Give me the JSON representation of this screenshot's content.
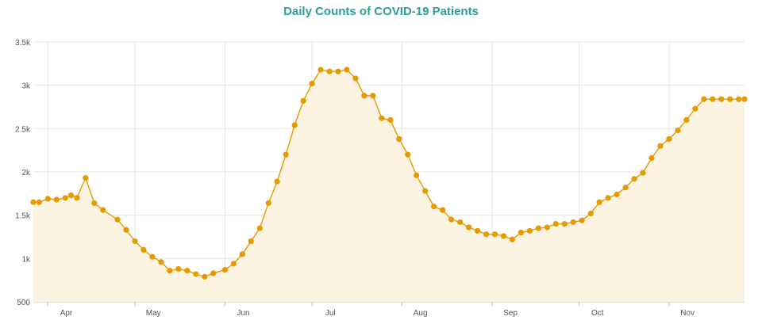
{
  "chart_data": {
    "type": "area",
    "title": "Daily Counts of COVID-19 Patients",
    "xlabel": "",
    "ylabel": "",
    "x_start": "2020-03-27",
    "x_end": "2020-11-27",
    "x_ticks": [
      "Apr",
      "May",
      "Jun",
      "Jul",
      "Aug",
      "Sep",
      "Oct",
      "Nov"
    ],
    "ylim": [
      500,
      3500
    ],
    "y_ticks": [
      {
        "value": 500,
        "label": "500"
      },
      {
        "value": 1000,
        "label": "1k"
      },
      {
        "value": 1500,
        "label": "1.5k"
      },
      {
        "value": 2000,
        "label": "2k"
      },
      {
        "value": 2500,
        "label": "2.5k"
      },
      {
        "value": 3000,
        "label": "3k"
      },
      {
        "value": 3500,
        "label": "3.5k"
      }
    ],
    "grid": true,
    "colors": {
      "line": "#e69a00",
      "fill": "#fdf3e3",
      "title": "#2e9e96"
    },
    "series": [
      {
        "x": [
          "2020-03-27",
          "2020-03-29",
          "2020-04-01",
          "2020-04-04",
          "2020-04-07",
          "2020-04-09",
          "2020-04-11",
          "2020-04-14",
          "2020-04-17",
          "2020-04-20",
          "2020-04-25",
          "2020-04-28",
          "2020-05-01",
          "2020-05-04",
          "2020-05-07",
          "2020-05-10",
          "2020-05-13",
          "2020-05-16",
          "2020-05-19",
          "2020-05-22",
          "2020-05-25",
          "2020-05-28",
          "2020-06-01",
          "2020-06-04",
          "2020-06-07",
          "2020-06-10",
          "2020-06-13",
          "2020-06-16",
          "2020-06-19",
          "2020-06-22",
          "2020-06-25",
          "2020-06-28",
          "2020-07-01",
          "2020-07-04",
          "2020-07-07",
          "2020-07-10",
          "2020-07-13",
          "2020-07-16",
          "2020-07-19",
          "2020-07-22",
          "2020-07-25",
          "2020-07-28",
          "2020-07-31",
          "2020-08-03",
          "2020-08-06",
          "2020-08-09",
          "2020-08-12",
          "2020-08-15",
          "2020-08-18",
          "2020-08-21",
          "2020-08-24",
          "2020-08-27",
          "2020-08-30",
          "2020-09-02",
          "2020-09-05",
          "2020-09-08",
          "2020-09-11",
          "2020-09-14",
          "2020-09-17",
          "2020-09-20",
          "2020-09-23",
          "2020-09-26",
          "2020-09-29",
          "2020-10-02",
          "2020-10-05",
          "2020-10-08",
          "2020-10-11",
          "2020-10-14",
          "2020-10-17",
          "2020-10-20",
          "2020-10-23",
          "2020-10-26",
          "2020-10-29",
          "2020-11-01",
          "2020-11-04",
          "2020-11-07",
          "2020-11-10",
          "2020-11-13",
          "2020-11-16",
          "2020-11-19",
          "2020-11-22",
          "2020-11-25",
          "2020-11-27"
        ],
        "values": [
          1650,
          1650,
          1690,
          1680,
          1700,
          1730,
          1700,
          1930,
          1640,
          1560,
          1450,
          1330,
          1200,
          1100,
          1020,
          960,
          860,
          880,
          860,
          820,
          790,
          830,
          870,
          940,
          1050,
          1200,
          1350,
          1640,
          1890,
          2200,
          2540,
          2820,
          3020,
          3180,
          3160,
          3160,
          3180,
          3080,
          2880,
          2880,
          2620,
          2600,
          2380,
          2200,
          1960,
          1780,
          1600,
          1560,
          1450,
          1420,
          1360,
          1320,
          1280,
          1280,
          1260,
          1220,
          1300,
          1320,
          1350,
          1360,
          1400,
          1400,
          1420,
          1440,
          1520,
          1650,
          1700,
          1740,
          1820,
          1920,
          1990,
          2160,
          2300,
          2380,
          2480,
          2600,
          2730,
          2840,
          2840,
          2840,
          2840,
          2840,
          2840
        ]
      }
    ]
  }
}
